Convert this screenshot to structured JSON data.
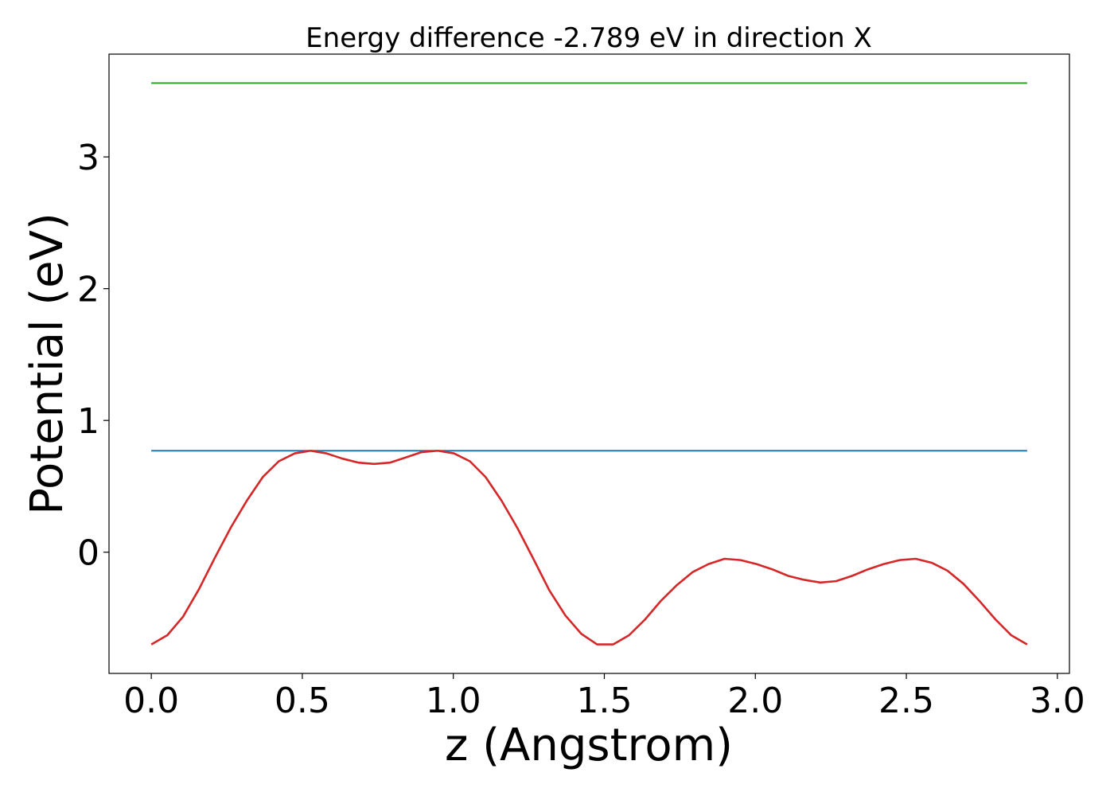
{
  "chart_data": {
    "type": "line",
    "title": "Energy difference -2.789 eV in direction X",
    "xlabel": "z (Angstrom)",
    "ylabel": "Potential (eV)",
    "xlim": [
      -0.14,
      3.04
    ],
    "ylim": [
      -0.92,
      3.78
    ],
    "xticks": [
      0.0,
      0.5,
      1.0,
      1.5,
      2.0,
      2.5,
      3.0
    ],
    "xtick_labels": [
      "0.0",
      "0.5",
      "1.0",
      "1.5",
      "2.0",
      "2.5",
      "3.0"
    ],
    "yticks": [
      0,
      1,
      2,
      3
    ],
    "ytick_labels": [
      "0",
      "1",
      "2",
      "3"
    ],
    "grid": false,
    "series": [
      {
        "color": "#2ca02c",
        "x": [
          0.0,
          2.9
        ],
        "y": [
          3.56,
          3.56
        ]
      },
      {
        "color": "#1f77b4",
        "x": [
          0.0,
          2.9
        ],
        "y": [
          0.77,
          0.77
        ]
      },
      {
        "color": "#d62728",
        "x": [
          0.0,
          0.053,
          0.105,
          0.158,
          0.211,
          0.264,
          0.316,
          0.369,
          0.422,
          0.475,
          0.527,
          0.58,
          0.633,
          0.685,
          0.738,
          0.791,
          0.844,
          0.896,
          0.949,
          1.002,
          1.055,
          1.107,
          1.16,
          1.213,
          1.265,
          1.318,
          1.371,
          1.424,
          1.476,
          1.529,
          1.582,
          1.635,
          1.687,
          1.74,
          1.793,
          1.845,
          1.898,
          1.951,
          2.004,
          2.056,
          2.109,
          2.162,
          2.215,
          2.267,
          2.32,
          2.373,
          2.425,
          2.478,
          2.531,
          2.584,
          2.636,
          2.689,
          2.742,
          2.795,
          2.847,
          2.9
        ],
        "y": [
          -0.7,
          -0.63,
          -0.49,
          -0.28,
          -0.04,
          0.19,
          0.39,
          0.57,
          0.69,
          0.75,
          0.77,
          0.75,
          0.71,
          0.68,
          0.67,
          0.68,
          0.72,
          0.76,
          0.77,
          0.75,
          0.69,
          0.57,
          0.39,
          0.18,
          -0.05,
          -0.29,
          -0.48,
          -0.62,
          -0.7,
          -0.7,
          -0.63,
          -0.51,
          -0.37,
          -0.25,
          -0.15,
          -0.09,
          -0.05,
          -0.06,
          -0.09,
          -0.13,
          -0.18,
          -0.21,
          -0.23,
          -0.22,
          -0.18,
          -0.13,
          -0.09,
          -0.06,
          -0.05,
          -0.08,
          -0.14,
          -0.24,
          -0.37,
          -0.51,
          -0.63,
          -0.7
        ]
      }
    ]
  }
}
